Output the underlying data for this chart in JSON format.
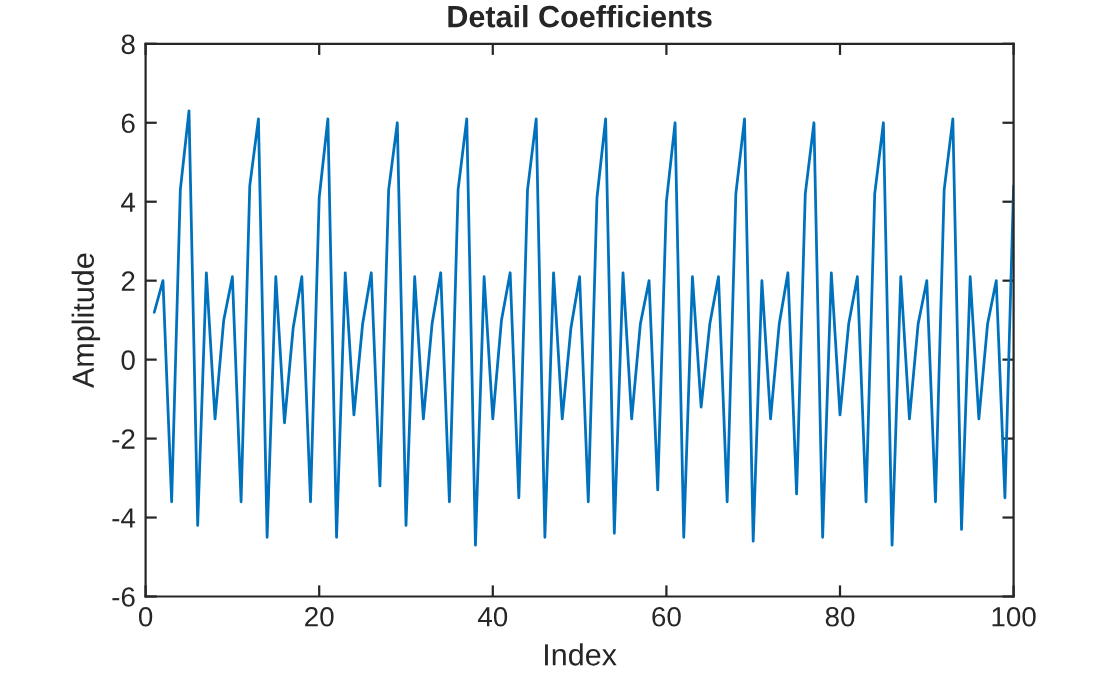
{
  "chart_data": {
    "type": "line",
    "title": "Detail Coefficients",
    "xlabel": "Index",
    "ylabel": "Amplitude",
    "xlim": [
      0,
      100
    ],
    "xticks": [
      0,
      20,
      40,
      60,
      80,
      100
    ],
    "ylim": [
      -6,
      8
    ],
    "yticks": [
      -6,
      -4,
      -2,
      0,
      2,
      4,
      6,
      8
    ],
    "grid": false,
    "legend": false,
    "marker": "none",
    "line_style": "solid",
    "x": [
      1,
      2,
      3,
      4,
      5,
      6,
      7,
      8,
      9,
      10,
      11,
      12,
      13,
      14,
      15,
      16,
      17,
      18,
      19,
      20,
      21,
      22,
      23,
      24,
      25,
      26,
      27,
      28,
      29,
      30,
      31,
      32,
      33,
      34,
      35,
      36,
      37,
      38,
      39,
      40,
      41,
      42,
      43,
      44,
      45,
      46,
      47,
      48,
      49,
      50,
      51,
      52,
      53,
      54,
      55,
      56,
      57,
      58,
      59,
      60,
      61,
      62,
      63,
      64,
      65,
      66,
      67,
      68,
      69,
      70,
      71,
      72,
      73,
      74,
      75,
      76,
      77,
      78,
      79,
      80,
      81,
      82,
      83,
      84,
      85,
      86,
      87,
      88,
      89,
      90,
      91,
      92,
      93,
      94,
      95,
      96,
      97,
      98,
      99,
      100
    ],
    "series": [
      {
        "color": "#0072bd",
        "values": [
          1.2,
          2.0,
          -3.6,
          4.3,
          6.3,
          -4.2,
          2.2,
          -1.5,
          1.0,
          2.1,
          -3.6,
          4.4,
          6.1,
          -4.5,
          2.1,
          -1.6,
          0.8,
          2.1,
          -3.6,
          4.1,
          6.1,
          -4.5,
          2.2,
          -1.4,
          0.9,
          2.2,
          -3.2,
          4.3,
          6.0,
          -4.2,
          2.1,
          -1.5,
          0.9,
          2.2,
          -3.6,
          4.3,
          6.1,
          -4.7,
          2.1,
          -1.5,
          1.0,
          2.2,
          -3.5,
          4.3,
          6.1,
          -4.5,
          2.2,
          -1.5,
          0.8,
          2.1,
          -3.6,
          4.1,
          6.1,
          -4.4,
          2.2,
          -1.5,
          0.9,
          2.0,
          -3.3,
          4.0,
          6.0,
          -4.5,
          2.1,
          -1.2,
          0.9,
          2.1,
          -3.6,
          4.2,
          6.1,
          -4.6,
          2.0,
          -1.5,
          0.9,
          2.2,
          -3.4,
          4.2,
          6.0,
          -4.5,
          2.2,
          -1.4,
          0.9,
          2.1,
          -3.6,
          4.2,
          6.0,
          -4.7,
          2.1,
          -1.5,
          0.9,
          2.0,
          -3.6,
          4.3,
          6.1,
          -4.3,
          2.1,
          -1.5,
          0.9,
          2.0,
          -3.5,
          4.4
        ]
      }
    ]
  }
}
